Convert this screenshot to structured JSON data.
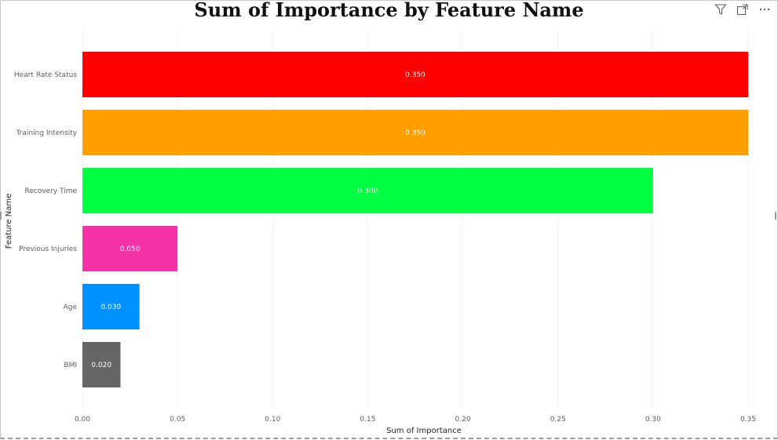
{
  "visual": {
    "title": "Sum of Importance by Feature Name"
  },
  "header_icons": [
    "filter-icon",
    "focus-mode-icon",
    "more-options-icon"
  ],
  "chart_data": {
    "type": "bar",
    "orientation": "horizontal",
    "title": "Sum of Importance by Feature Name",
    "xlabel": "Sum of Importance",
    "ylabel": "Feature Name",
    "categories": [
      "Heart Rate Status",
      "Training Intensity",
      "Recovery Time",
      "Previous Injuries",
      "Age",
      "BMI"
    ],
    "values": [
      0.35,
      0.35,
      0.3,
      0.05,
      0.03,
      0.02
    ],
    "data_labels": [
      "0.350",
      "0.350",
      "0.300",
      "0.050",
      "0.030",
      "0.020"
    ],
    "colors": [
      "#ff0000",
      "#ff9e00",
      "#00ff40",
      "#f531a8",
      "#0090ff",
      "#666666"
    ],
    "x_ticks": [
      "0.00",
      "0.05",
      "0.10",
      "0.15",
      "0.20",
      "0.25",
      "0.30",
      "0.35"
    ],
    "tick_values": [
      0,
      0.05,
      0.1,
      0.15,
      0.2,
      0.25,
      0.3,
      0.35
    ],
    "xlim": [
      0,
      0.35
    ],
    "grid": true,
    "legend": "none"
  }
}
